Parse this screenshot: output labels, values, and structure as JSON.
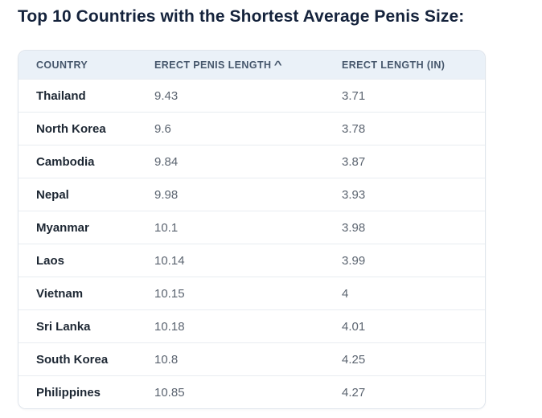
{
  "title": "Top 10 Countries with the Shortest Average Penis Size:",
  "table": {
    "columns": [
      {
        "label": "COUNTRY",
        "sort_indicator": ""
      },
      {
        "label": "ERECT PENIS LENGTH",
        "sort_indicator": "^"
      },
      {
        "label": "ERECT LENGTH (IN)",
        "sort_indicator": ""
      }
    ],
    "rows": [
      {
        "country": "Thailand",
        "erect_length": "9.43",
        "erect_length_in": "3.71"
      },
      {
        "country": "North Korea",
        "erect_length": "9.6",
        "erect_length_in": "3.78"
      },
      {
        "country": "Cambodia",
        "erect_length": "9.84",
        "erect_length_in": "3.87"
      },
      {
        "country": "Nepal",
        "erect_length": "9.98",
        "erect_length_in": "3.93"
      },
      {
        "country": "Myanmar",
        "erect_length": "10.1",
        "erect_length_in": "3.98"
      },
      {
        "country": "Laos",
        "erect_length": "10.14",
        "erect_length_in": "3.99"
      },
      {
        "country": "Vietnam",
        "erect_length": "10.15",
        "erect_length_in": "4"
      },
      {
        "country": "Sri Lanka",
        "erect_length": "10.18",
        "erect_length_in": "4.01"
      },
      {
        "country": "South Korea",
        "erect_length": "10.8",
        "erect_length_in": "4.25"
      },
      {
        "country": "Philippines",
        "erect_length": "10.85",
        "erect_length_in": "4.27"
      }
    ]
  },
  "colors": {
    "title": "#15233c",
    "header_background": "#eaf1f8",
    "header_text": "#46576c",
    "row_border": "#e8ecf1",
    "country_text": "#1d2733",
    "value_text": "#5b6470",
    "table_border": "#dfe5ec"
  }
}
